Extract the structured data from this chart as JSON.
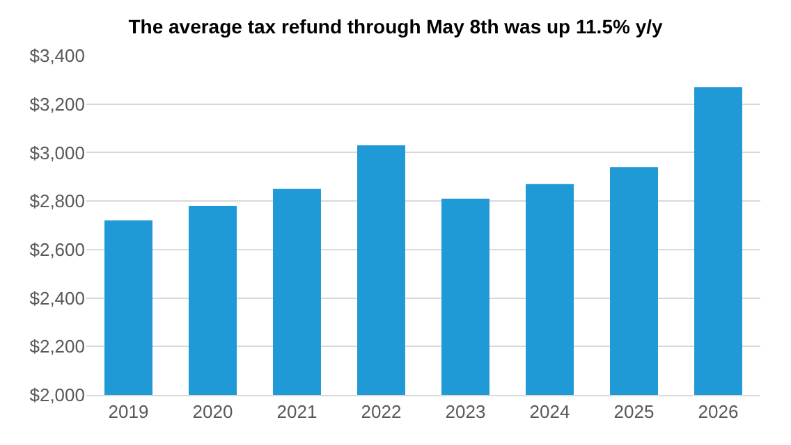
{
  "chart_data": {
    "type": "bar",
    "title": "The average tax refund through May 8th was up 11.5% y/y",
    "categories": [
      "2019",
      "2020",
      "2021",
      "2022",
      "2023",
      "2024",
      "2025",
      "2026"
    ],
    "values": [
      2720,
      2780,
      2850,
      3030,
      2810,
      2870,
      2940,
      3270
    ],
    "color": "#1f9ad6",
    "ylim": [
      2000,
      3400
    ],
    "yticks": [
      {
        "value": 2000,
        "label": "$2,000"
      },
      {
        "value": 2200,
        "label": "$2,200"
      },
      {
        "value": 2400,
        "label": "$2,400"
      },
      {
        "value": 2600,
        "label": "$2,600"
      },
      {
        "value": 2800,
        "label": "$2,800"
      },
      {
        "value": 3000,
        "label": "$3,000"
      },
      {
        "value": 3200,
        "label": "$3,200"
      },
      {
        "value": 3400,
        "label": "$3,400"
      }
    ],
    "grid": "y"
  }
}
